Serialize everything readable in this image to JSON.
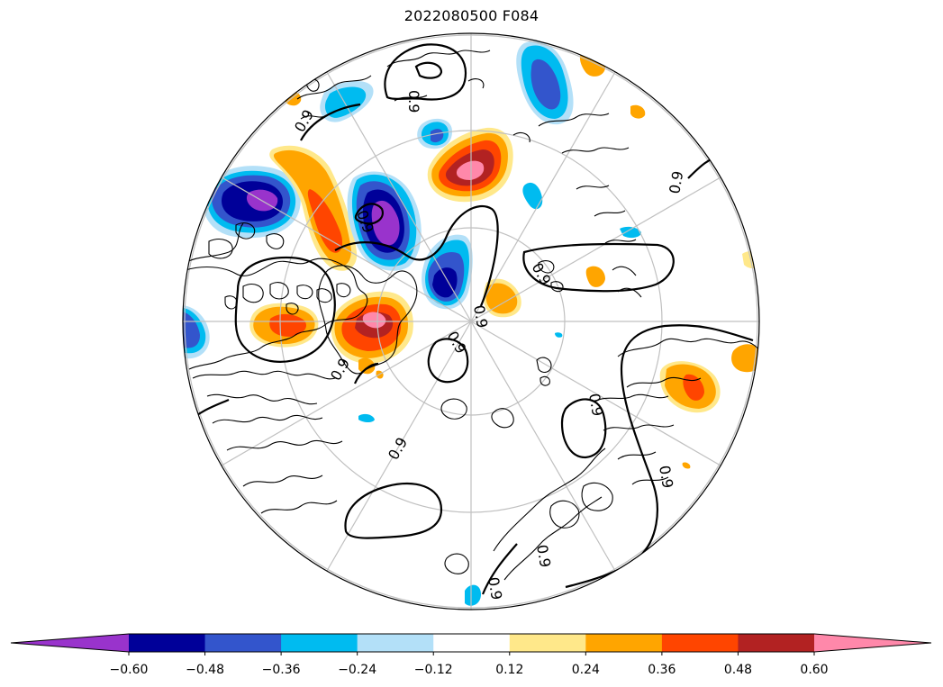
{
  "title": "2022080500 F084",
  "contour_label": "0.9",
  "colorbar": {
    "colors": [
      "#9933cc",
      "#000099",
      "#3355cc",
      "#00bbf0",
      "#b3e0f8",
      "#ffffff",
      "#ffe88a",
      "#ffa500",
      "#ff4500",
      "#b22222",
      "#ff88aa"
    ],
    "tick_labels": [
      "−0.60",
      "−0.48",
      "−0.36",
      "−0.24",
      "−0.12",
      "0.12",
      "0.24",
      "0.36",
      "0.48",
      "0.60"
    ],
    "extend": "both"
  },
  "map": {
    "projection": "north polar stereographic",
    "gridlines": true,
    "coastlines": true
  }
}
